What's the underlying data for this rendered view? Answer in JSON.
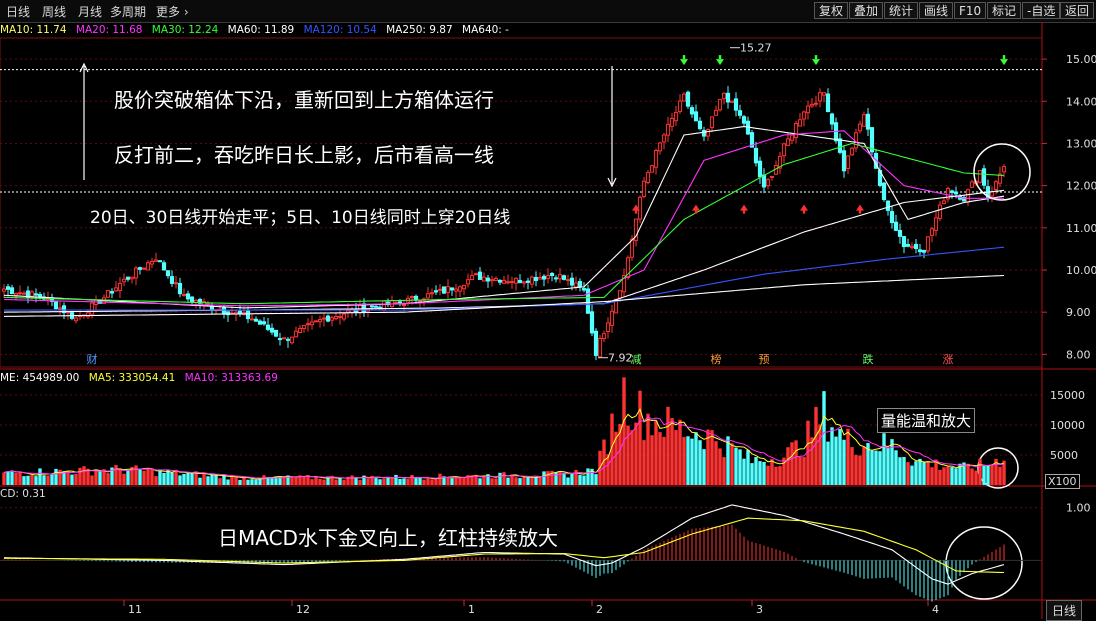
{
  "toolbar": {
    "tabs": [
      "日线",
      "周线",
      "月线",
      "多周期",
      "更多"
    ],
    "buttons": [
      "复权",
      "叠加",
      "统计",
      "画线",
      "F10",
      "标记",
      "-自选",
      "返回"
    ]
  },
  "ma_legend": [
    {
      "label": "MA10: 11.74",
      "color": "#ffffff"
    },
    {
      "label": "MA20: 11.68",
      "color": "#ff33ff"
    },
    {
      "label": "MA30: 12.24",
      "color": "#33ff33"
    },
    {
      "label": "MA60: 11.89",
      "color": "#ffffff"
    },
    {
      "label": "MA120: 10.54",
      "color": "#3355ff"
    },
    {
      "label": "MA250: 9.87",
      "color": "#ffffff"
    },
    {
      "label": "MA640: -",
      "color": "#ffffff"
    }
  ],
  "vol_legend": [
    {
      "label": "ME: 454989.00",
      "color": "#ffffff"
    },
    {
      "label": "MA5: 333054.41",
      "color": "#ffff33"
    },
    {
      "label": "MA10: 313363.69",
      "color": "#ff33ff"
    }
  ],
  "macd_legend": "CD: 0.31",
  "annotations": {
    "line1": "股价突破箱体下沿，重新回到上方箱体运行",
    "line2": "反打前二，吞吃昨日长上影，后市看高一线",
    "line3": "20日、30日线开始走平；5日、10日线同时上穿20日线",
    "volume_note": "量能温和放大",
    "macd_note": "日MACD水下金叉向上，红柱持续放大"
  },
  "chart_markers": {
    "high_label": "15.27",
    "low_label": "7.92",
    "event_tags": [
      {
        "text": "财",
        "color": "#5599ff",
        "index": 22
      },
      {
        "text": "减",
        "color": "#66ff66",
        "index": 158
      },
      {
        "text": "榜",
        "color": "#ff9933",
        "index": 178
      },
      {
        "text": "预",
        "color": "#ff9933",
        "index": 190
      },
      {
        "text": "跌",
        "color": "#66ff66",
        "index": 216
      },
      {
        "text": "涨",
        "color": "#ff5555",
        "index": 236
      }
    ]
  },
  "x_axis_labels": [
    {
      "text": "11",
      "index": 30
    },
    {
      "text": "12",
      "index": 72
    },
    {
      "text": "1",
      "index": 115
    },
    {
      "text": "2",
      "index": 147
    },
    {
      "text": "3",
      "index": 187
    },
    {
      "text": "4",
      "index": 231
    }
  ],
  "period_label": "日线",
  "volume_scale_unit": "X100",
  "chart_data": [
    {
      "type": "candlestick",
      "title": "",
      "y_ticks": [
        8.0,
        9.0,
        10.0,
        11.0,
        12.0,
        13.0,
        14.0,
        15.0
      ],
      "ylim": [
        7.7,
        15.5
      ],
      "box_upper": 14.75,
      "box_lower": 11.85,
      "key_bars": [
        {
          "label": "low",
          "value": 7.92
        },
        {
          "label": "high",
          "value": 15.27
        }
      ],
      "close_anchors": [
        [
          0,
          9.55
        ],
        [
          10,
          9.35
        ],
        [
          18,
          8.85
        ],
        [
          25,
          9.35
        ],
        [
          30,
          9.75
        ],
        [
          38,
          10.3
        ],
        [
          45,
          9.35
        ],
        [
          55,
          9.05
        ],
        [
          62,
          8.85
        ],
        [
          70,
          8.35
        ],
        [
          80,
          8.85
        ],
        [
          90,
          9.1
        ],
        [
          100,
          9.25
        ],
        [
          110,
          9.5
        ],
        [
          118,
          9.85
        ],
        [
          128,
          9.75
        ],
        [
          138,
          9.9
        ],
        [
          145,
          9.5
        ],
        [
          148,
          8.05
        ],
        [
          155,
          9.85
        ],
        [
          160,
          12.1
        ],
        [
          165,
          13.2
        ],
        [
          170,
          14.1
        ],
        [
          175,
          13.1
        ],
        [
          180,
          14.2
        ],
        [
          185,
          13.5
        ],
        [
          190,
          11.9
        ],
        [
          195,
          12.9
        ],
        [
          200,
          13.8
        ],
        [
          205,
          14.2
        ],
        [
          210,
          12.4
        ],
        [
          215,
          13.7
        ],
        [
          220,
          11.6
        ],
        [
          225,
          10.6
        ],
        [
          230,
          10.5
        ],
        [
          236,
          11.95
        ],
        [
          240,
          11.7
        ],
        [
          244,
          12.35
        ],
        [
          246,
          11.75
        ],
        [
          248,
          12.05
        ],
        [
          250,
          12.5
        ]
      ],
      "ma_anchors": [
        {
          "name": "MA10",
          "color": "#ffffff",
          "points": [
            [
              0,
              9.4
            ],
            [
              60,
              9.1
            ],
            [
              100,
              9.2
            ],
            [
              145,
              9.6
            ],
            [
              158,
              10.8
            ],
            [
              170,
              13.2
            ],
            [
              185,
              13.4
            ],
            [
              200,
              13.2
            ],
            [
              215,
              13.0
            ],
            [
              226,
              11.2
            ],
            [
              240,
              11.6
            ],
            [
              250,
              11.75
            ]
          ]
        },
        {
          "name": "MA20",
          "color": "#ff33ff",
          "points": [
            [
              0,
              9.3
            ],
            [
              60,
              9.15
            ],
            [
              100,
              9.2
            ],
            [
              145,
              9.4
            ],
            [
              160,
              10.0
            ],
            [
              175,
              12.6
            ],
            [
              195,
              13.2
            ],
            [
              210,
              13.3
            ],
            [
              225,
              12.0
            ],
            [
              240,
              11.7
            ],
            [
              250,
              11.7
            ]
          ]
        },
        {
          "name": "MA30",
          "color": "#33ff33",
          "points": [
            [
              0,
              9.35
            ],
            [
              60,
              9.2
            ],
            [
              110,
              9.3
            ],
            [
              150,
              9.35
            ],
            [
              170,
              11.2
            ],
            [
              195,
              12.5
            ],
            [
              212,
              13.0
            ],
            [
              228,
              12.6
            ],
            [
              240,
              12.3
            ],
            [
              250,
              12.24
            ]
          ]
        },
        {
          "name": "MA60",
          "color": "#ffffff",
          "points": [
            [
              0,
              9.0
            ],
            [
              60,
              9.05
            ],
            [
              110,
              9.1
            ],
            [
              150,
              9.2
            ],
            [
              175,
              10.0
            ],
            [
              200,
              10.9
            ],
            [
              225,
              11.6
            ],
            [
              250,
              11.89
            ]
          ]
        },
        {
          "name": "MA120",
          "color": "#3355ff",
          "points": [
            [
              0,
              9.05
            ],
            [
              100,
              9.05
            ],
            [
              150,
              9.2
            ],
            [
              190,
              9.9
            ],
            [
              220,
              10.25
            ],
            [
              250,
              10.54
            ]
          ]
        },
        {
          "name": "MA250",
          "color": "#ffffff",
          "points": [
            [
              0,
              8.9
            ],
            [
              100,
              9.0
            ],
            [
              150,
              9.25
            ],
            [
              200,
              9.65
            ],
            [
              250,
              9.87
            ]
          ]
        }
      ]
    },
    {
      "type": "bar",
      "title": "",
      "y_ticks": [
        5000,
        10000,
        15000
      ],
      "ylim": [
        0,
        17000
      ],
      "unit": "X100",
      "volume_anchors": [
        [
          0,
          2000
        ],
        [
          30,
          2600
        ],
        [
          60,
          1200
        ],
        [
          100,
          1300
        ],
        [
          140,
          1800
        ],
        [
          148,
          2500
        ],
        [
          155,
          15000
        ],
        [
          160,
          11500
        ],
        [
          168,
          9500
        ],
        [
          175,
          8600
        ],
        [
          180,
          7000
        ],
        [
          187,
          4000
        ],
        [
          195,
          4800
        ],
        [
          200,
          7000
        ],
        [
          205,
          12000
        ],
        [
          210,
          7500
        ],
        [
          215,
          7000
        ],
        [
          222,
          6600
        ],
        [
          228,
          4000
        ],
        [
          240,
          2800
        ],
        [
          246,
          3500
        ],
        [
          250,
          4549
        ]
      ]
    },
    {
      "type": "bar",
      "title": "",
      "y_ticks": [
        1.0
      ],
      "ylim": [
        -0.75,
        1.2
      ],
      "macd_anchors": [
        [
          0,
          0.05
        ],
        [
          40,
          0.0
        ],
        [
          70,
          -0.08
        ],
        [
          100,
          0.02
        ],
        [
          120,
          0.15
        ],
        [
          140,
          0.12
        ],
        [
          148,
          -0.1
        ],
        [
          152,
          -0.05
        ],
        [
          160,
          0.25
        ],
        [
          172,
          0.8
        ],
        [
          182,
          1.05
        ],
        [
          195,
          0.85
        ],
        [
          210,
          0.5
        ],
        [
          222,
          0.2
        ],
        [
          232,
          -0.35
        ],
        [
          236,
          -0.45
        ],
        [
          242,
          -0.25
        ],
        [
          250,
          -0.08
        ]
      ],
      "dea_anchors": [
        [
          0,
          0.04
        ],
        [
          40,
          0.02
        ],
        [
          70,
          -0.05
        ],
        [
          100,
          0.0
        ],
        [
          120,
          0.12
        ],
        [
          140,
          0.13
        ],
        [
          150,
          0.05
        ],
        [
          160,
          0.15
        ],
        [
          172,
          0.5
        ],
        [
          186,
          0.8
        ],
        [
          200,
          0.75
        ],
        [
          215,
          0.55
        ],
        [
          228,
          0.2
        ],
        [
          238,
          -0.2
        ],
        [
          245,
          -0.22
        ],
        [
          250,
          -0.23
        ]
      ]
    }
  ]
}
